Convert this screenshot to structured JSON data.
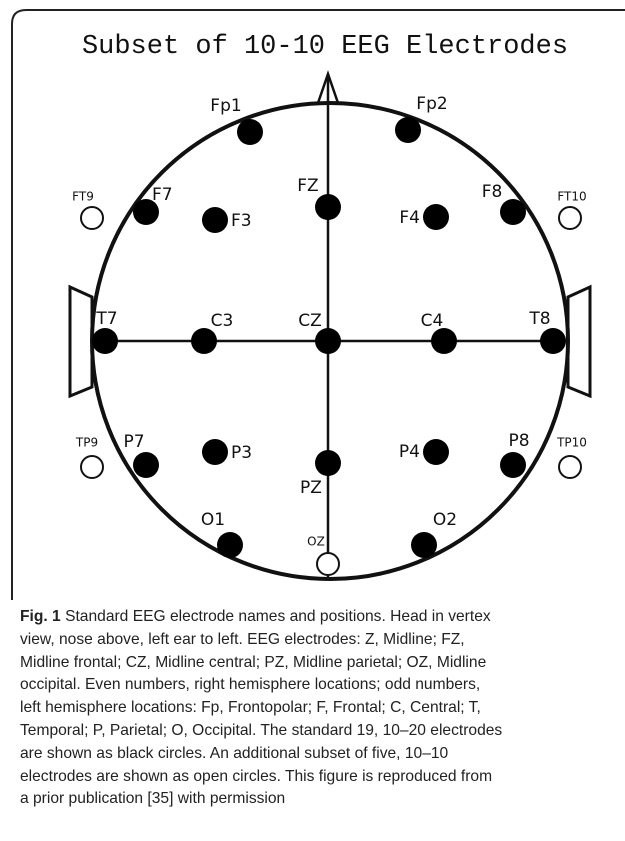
{
  "title": "Subset of 10-10 EEG Electrodes",
  "nodes": [
    {
      "label": "Fp1"
    },
    {
      "label": "Fp2"
    },
    {
      "label": "F7"
    },
    {
      "label": "F3"
    },
    {
      "label": "FZ"
    },
    {
      "label": "F4"
    },
    {
      "label": "F8"
    },
    {
      "label": "T7"
    },
    {
      "label": "C3"
    },
    {
      "label": "CZ"
    },
    {
      "label": "C4"
    },
    {
      "label": "T8"
    },
    {
      "label": "P7"
    },
    {
      "label": "P3"
    },
    {
      "label": "PZ"
    },
    {
      "label": "P4"
    },
    {
      "label": "P8"
    },
    {
      "label": "O1"
    },
    {
      "label": "O2"
    }
  ],
  "open_nodes": [
    {
      "label": "FT9"
    },
    {
      "label": "FT10"
    },
    {
      "label": "TP9"
    },
    {
      "label": "TP10"
    },
    {
      "label": "OZ"
    }
  ],
  "caption": {
    "label": "Fig. 1",
    "lines": [
      " Standard EEG electrode names and positions. Head in vertex",
      "view, nose above, left ear to left. EEG electrodes: Z, Midline; FZ,",
      "Midline frontal; CZ, Midline central; PZ, Midline parietal; OZ, Midline",
      "occipital. Even numbers, right hemisphere locations; odd numbers,",
      "left hemisphere locations: Fp, Frontopolar; F, Frontal; C, Central; T,",
      "Temporal; P, Parietal; O, Occipital. The standard 19, 10–20 electrodes",
      "are shown as black circles. An additional subset of five, 10–10",
      "electrodes are shown as open circles. This figure is reproduced from",
      "a prior publication [35] with permission"
    ]
  }
}
